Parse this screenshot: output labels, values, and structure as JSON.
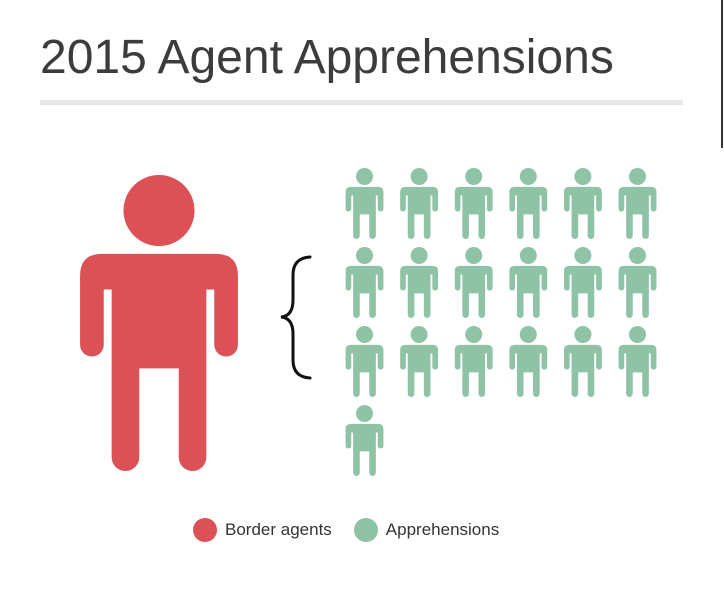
{
  "chart_data": {
    "type": "pictogram",
    "title": "2015 Agent Apprehensions",
    "ratio_description": "1 border agent : 19 apprehensions",
    "series": [
      {
        "name": "Border agents",
        "count": 1,
        "color": "#dc5156"
      },
      {
        "name": "Apprehensions",
        "count": 19,
        "color": "#8ec3a6"
      }
    ]
  },
  "colors": {
    "title": "#3c3c3c",
    "rule": "#e6e6e6",
    "bracket": "#111111"
  }
}
